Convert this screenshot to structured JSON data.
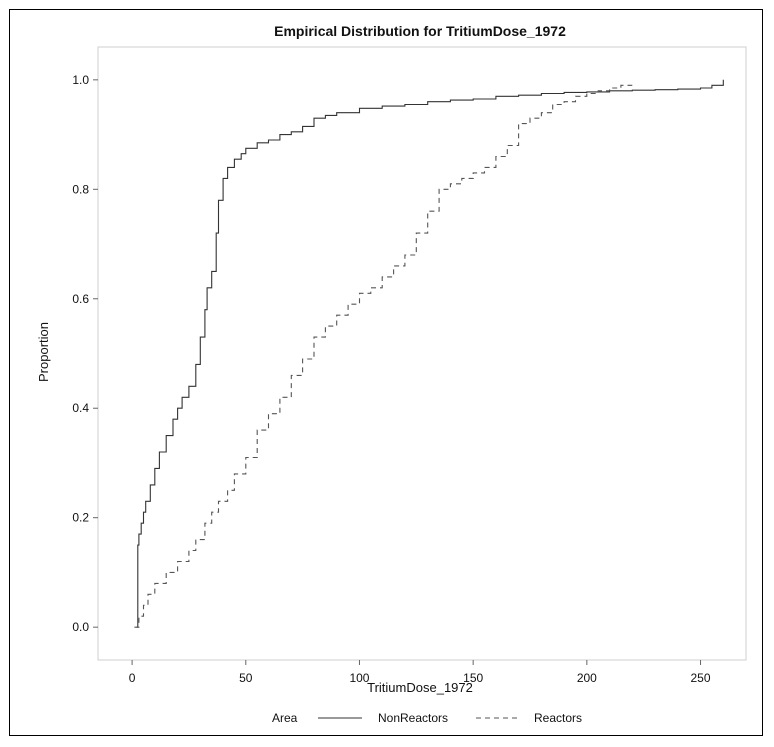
{
  "chart_data": {
    "type": "line",
    "title": "Empirical Distribution for TritiumDose_1972",
    "xlabel": "TritiumDose_1972",
    "ylabel": "Proportion",
    "xlim": [
      -15,
      270
    ],
    "ylim": [
      -0.06,
      1.06
    ],
    "x_ticks": [
      0,
      50,
      100,
      150,
      200,
      250
    ],
    "y_ticks": [
      0.0,
      0.2,
      0.4,
      0.6,
      0.8,
      1.0
    ],
    "x_tick_labels": [
      "0",
      "50",
      "100",
      "150",
      "200",
      "250"
    ],
    "y_tick_labels": [
      "0.0",
      "0.2",
      "0.4",
      "0.6",
      "0.8",
      "1.0"
    ],
    "grid": false,
    "legend": {
      "placement": "bottom",
      "title": "Area",
      "entries": [
        "NonReactors",
        "Reactors"
      ]
    },
    "series": [
      {
        "name": "NonReactors",
        "style": "solid",
        "color": "#333333",
        "x": [
          2,
          2.5,
          3,
          4,
          5,
          6,
          8,
          10,
          12,
          15,
          18,
          20,
          22,
          25,
          28,
          30,
          32,
          33,
          35,
          37,
          38,
          40,
          42,
          45,
          48,
          50,
          55,
          60,
          65,
          70,
          75,
          80,
          85,
          90,
          100,
          110,
          120,
          130,
          140,
          150,
          160,
          170,
          180,
          190,
          200,
          210,
          220,
          230,
          240,
          250,
          255,
          260
        ],
        "y": [
          0.0,
          0.15,
          0.17,
          0.19,
          0.21,
          0.23,
          0.26,
          0.29,
          0.32,
          0.35,
          0.38,
          0.4,
          0.42,
          0.44,
          0.48,
          0.53,
          0.58,
          0.62,
          0.65,
          0.72,
          0.78,
          0.82,
          0.84,
          0.855,
          0.865,
          0.875,
          0.885,
          0.89,
          0.9,
          0.905,
          0.915,
          0.93,
          0.935,
          0.94,
          0.948,
          0.952,
          0.955,
          0.96,
          0.963,
          0.965,
          0.97,
          0.972,
          0.975,
          0.977,
          0.978,
          0.98,
          0.981,
          0.982,
          0.983,
          0.985,
          0.99,
          1.0
        ]
      },
      {
        "name": "Reactors",
        "style": "dashed",
        "color": "#555555",
        "x": [
          1,
          3,
          5,
          7,
          10,
          15,
          20,
          25,
          28,
          32,
          35,
          38,
          42,
          45,
          50,
          55,
          60,
          65,
          70,
          75,
          80,
          85,
          90,
          95,
          100,
          105,
          110,
          115,
          120,
          125,
          130,
          135,
          140,
          145,
          150,
          155,
          160,
          165,
          170,
          175,
          180,
          185,
          190,
          195,
          200,
          205,
          210,
          215,
          220
        ],
        "y": [
          0.0,
          0.02,
          0.04,
          0.06,
          0.08,
          0.1,
          0.12,
          0.14,
          0.16,
          0.19,
          0.21,
          0.23,
          0.25,
          0.28,
          0.31,
          0.36,
          0.39,
          0.42,
          0.46,
          0.49,
          0.53,
          0.55,
          0.57,
          0.59,
          0.61,
          0.62,
          0.64,
          0.66,
          0.68,
          0.72,
          0.76,
          0.8,
          0.81,
          0.82,
          0.83,
          0.84,
          0.86,
          0.88,
          0.92,
          0.93,
          0.94,
          0.955,
          0.96,
          0.97,
          0.975,
          0.98,
          0.985,
          0.99,
          0.99
        ]
      }
    ]
  }
}
